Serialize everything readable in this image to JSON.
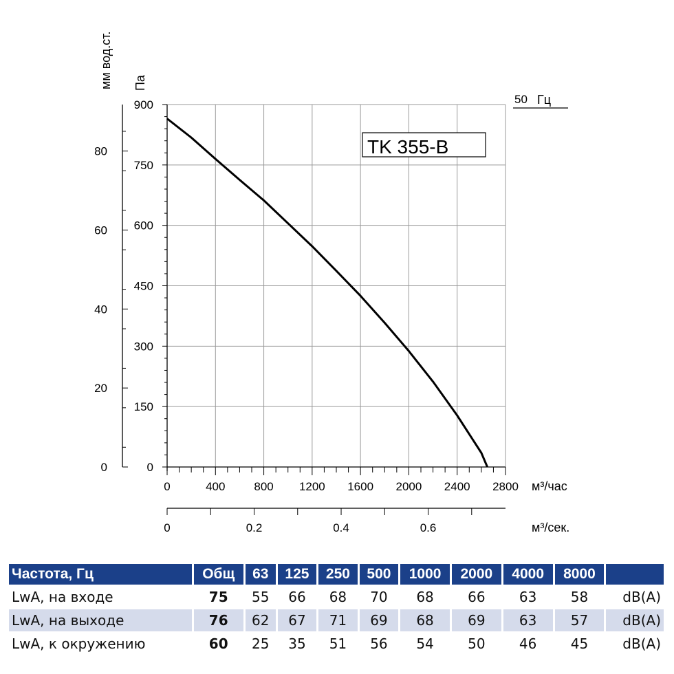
{
  "chart_data": {
    "type": "line",
    "model": "TK 355-B",
    "frequency": "50",
    "frequency_unit": "Гц",
    "y_left_label": "мм вод.ст.",
    "y_right_label": "Па",
    "x_unit_primary": "м³/час",
    "x_unit_secondary": "м³/сек.",
    "x_ticks": [
      "0",
      "400",
      "800",
      "1200",
      "1600",
      "2000",
      "2400",
      "2800"
    ],
    "x_ticks_values": [
      0,
      400,
      800,
      1200,
      1600,
      2000,
      2400,
      2800
    ],
    "x2_ticks": [
      "0",
      "0.2",
      "0.4",
      "0.6"
    ],
    "x2_ticks_values": [
      0,
      0.2,
      0.4,
      0.6
    ],
    "y_pa_ticks": [
      "0",
      "150",
      "300",
      "450",
      "600",
      "750",
      "900"
    ],
    "y_pa_values": [
      0,
      150,
      300,
      450,
      600,
      750,
      900
    ],
    "y_mm_ticks": [
      "0",
      "20",
      "40",
      "60",
      "80"
    ],
    "y_mm_values": [
      0,
      20,
      40,
      60,
      80
    ],
    "xlim": [
      0,
      2800
    ],
    "ylim": [
      0,
      900
    ],
    "series": [
      {
        "name": "TK 355-B",
        "x": [
          0,
          200,
          400,
          600,
          800,
          1000,
          1200,
          1400,
          1600,
          1800,
          2000,
          2200,
          2400,
          2600,
          2650
        ],
        "y": [
          865,
          818,
          765,
          713,
          662,
          605,
          548,
          487,
          425,
          358,
          288,
          212,
          128,
          35,
          0
        ]
      }
    ]
  },
  "table": {
    "headers": [
      "Частота, Гц",
      "Общ",
      "63",
      "125",
      "250",
      "500",
      "1000",
      "2000",
      "4000",
      "8000",
      ""
    ],
    "rows": [
      {
        "label": "LwA, на входе",
        "total": "75",
        "values": [
          "55",
          "66",
          "68",
          "70",
          "68",
          "66",
          "63",
          "58"
        ],
        "unit": "dB(A)"
      },
      {
        "label": "LwA, на выходе",
        "total": "76",
        "values": [
          "62",
          "67",
          "71",
          "69",
          "68",
          "69",
          "63",
          "57"
        ],
        "unit": "dB(A)"
      },
      {
        "label": "LwA, к окружению",
        "total": "60",
        "values": [
          "25",
          "35",
          "51",
          "56",
          "54",
          "50",
          "46",
          "45"
        ],
        "unit": "dB(A)"
      }
    ]
  }
}
